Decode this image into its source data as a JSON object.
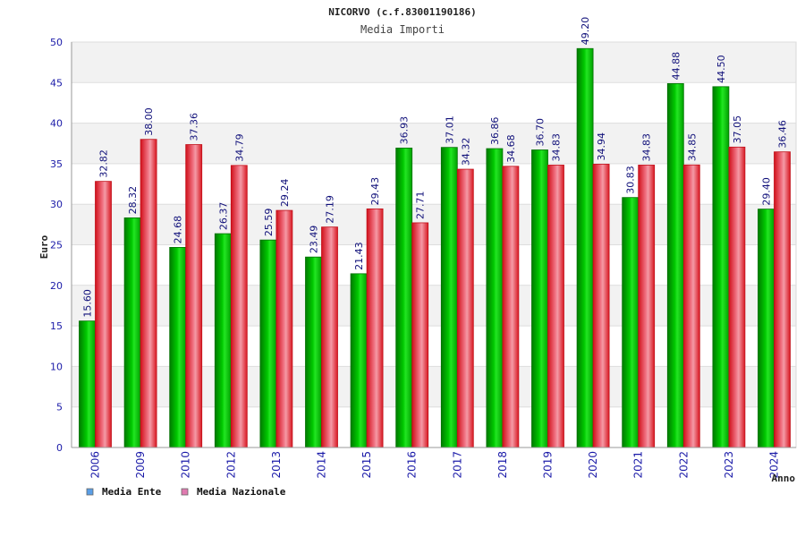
{
  "chart_data": {
    "type": "bar",
    "title": "NICORVO (c.f.83001190186)",
    "subtitle": "Media Importi",
    "xlabel": "Anno",
    "ylabel": "Euro",
    "ylim": [
      0,
      50
    ],
    "ytick_step": 5,
    "grid": true,
    "legend_position": "bottom-left",
    "categories": [
      "2006",
      "2009",
      "2010",
      "2012",
      "2013",
      "2014",
      "2015",
      "2016",
      "2017",
      "2018",
      "2019",
      "2020",
      "2021",
      "2022",
      "2023",
      "2024"
    ],
    "series": [
      {
        "name": "Media Ente",
        "color": "#00b400",
        "legend_color": "#5a9ee6",
        "values": [
          15.6,
          28.32,
          24.68,
          26.37,
          25.59,
          23.49,
          21.43,
          36.93,
          37.01,
          36.86,
          36.7,
          49.2,
          30.83,
          44.88,
          44.5,
          29.4
        ],
        "labels": [
          "15.60",
          "28.32",
          "24.68",
          "26.37",
          "25.59",
          "23.49",
          "21.43",
          "36.93",
          "37.01",
          "36.86",
          "36.70",
          "49.20",
          "30.83",
          "44.88",
          "44.50",
          "29.40"
        ]
      },
      {
        "name": "Media Nazionale",
        "color": "#e8202a",
        "legend_color": "#e07ab0",
        "values": [
          32.82,
          38.0,
          37.36,
          34.79,
          29.24,
          27.19,
          29.43,
          27.71,
          34.32,
          34.68,
          34.83,
          34.94,
          34.83,
          34.85,
          37.05,
          36.46
        ],
        "labels": [
          "32.82",
          "38.00",
          "37.36",
          "34.79",
          "29.24",
          "27.19",
          "29.43",
          "27.71",
          "34.32",
          "34.68",
          "34.83",
          "34.94",
          "34.83",
          "34.85",
          "37.05",
          "36.46"
        ]
      }
    ]
  }
}
